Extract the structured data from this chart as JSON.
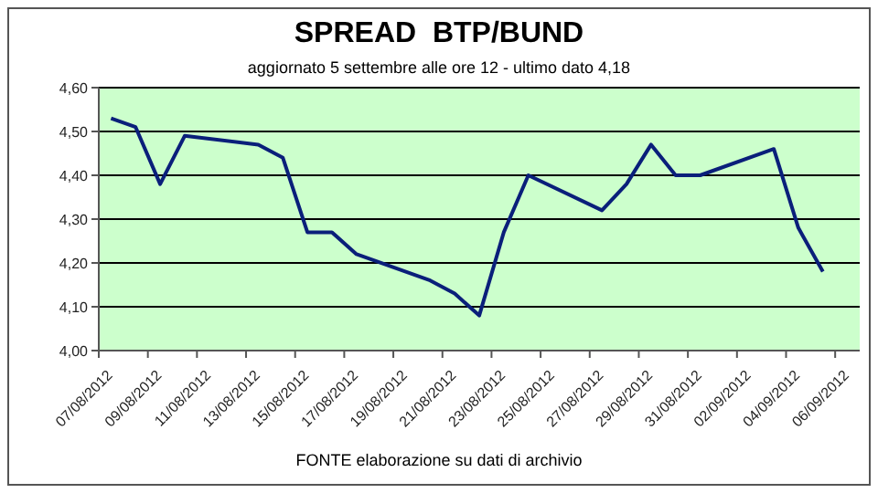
{
  "chart_data": {
    "type": "line",
    "title": "SPREAD  BTP/BUND",
    "subtitle": "aggiornato 5 settembre alle ore 12 - ultimo dato 4,18",
    "annotations": [
      "FONTE elaborazione su dati di archivio"
    ],
    "x": [
      "2012-08-07T12:00",
      "2012-08-08T12:00",
      "2012-08-09T12:00",
      "2012-08-10T12:00",
      "2012-08-13T12:00",
      "2012-08-14T12:00",
      "2012-08-15T12:00",
      "2012-08-16T12:00",
      "2012-08-17T12:00",
      "2012-08-20T12:00",
      "2012-08-21T12:00",
      "2012-08-22T12:00",
      "2012-08-23T12:00",
      "2012-08-24T12:00",
      "2012-08-27T12:00",
      "2012-08-28T12:00",
      "2012-08-29T12:00",
      "2012-08-30T12:00",
      "2012-08-31T12:00",
      "2012-09-03T12:00",
      "2012-09-04T12:00",
      "2012-09-05T12:00"
    ],
    "series": [
      {
        "color": "#0a1f7a",
        "values": [
          4.53,
          4.51,
          4.38,
          4.49,
          4.47,
          4.44,
          4.27,
          4.27,
          4.22,
          4.16,
          4.13,
          4.08,
          4.27,
          4.4,
          4.32,
          4.38,
          4.47,
          4.4,
          4.4,
          4.46,
          4.28,
          4.18
        ]
      }
    ],
    "xlim": [
      "2012-08-07",
      "2012-09-07"
    ],
    "xticks": [
      {
        "value": "2012-08-07",
        "label": "07/08/2012"
      },
      {
        "value": "2012-08-09",
        "label": "09/08/2012"
      },
      {
        "value": "2012-08-11",
        "label": "11/08/2012"
      },
      {
        "value": "2012-08-13",
        "label": "13/08/2012"
      },
      {
        "value": "2012-08-15",
        "label": "15/08/2012"
      },
      {
        "value": "2012-08-17",
        "label": "17/08/2012"
      },
      {
        "value": "2012-08-19",
        "label": "19/08/2012"
      },
      {
        "value": "2012-08-21",
        "label": "21/08/2012"
      },
      {
        "value": "2012-08-23",
        "label": "23/08/2012"
      },
      {
        "value": "2012-08-25",
        "label": "25/08/2012"
      },
      {
        "value": "2012-08-27",
        "label": "27/08/2012"
      },
      {
        "value": "2012-08-29",
        "label": "29/08/2012"
      },
      {
        "value": "2012-08-31",
        "label": "31/08/2012"
      },
      {
        "value": "2012-09-02",
        "label": "02/09/2012"
      },
      {
        "value": "2012-09-04",
        "label": "04/09/2012"
      },
      {
        "value": "2012-09-06",
        "label": "06/09/2012"
      }
    ],
    "ylim": [
      4.0,
      4.6
    ],
    "yticks": [
      {
        "value": 4.0,
        "label": "4,00"
      },
      {
        "value": 4.1,
        "label": "4,10"
      },
      {
        "value": 4.2,
        "label": "4,20"
      },
      {
        "value": 4.3,
        "label": "4,30"
      },
      {
        "value": 4.4,
        "label": "4,40"
      },
      {
        "value": 4.5,
        "label": "4,50"
      },
      {
        "value": 4.6,
        "label": "4,60"
      }
    ],
    "grid": "y",
    "marker": "none",
    "line_style": "solid",
    "legend": false
  }
}
